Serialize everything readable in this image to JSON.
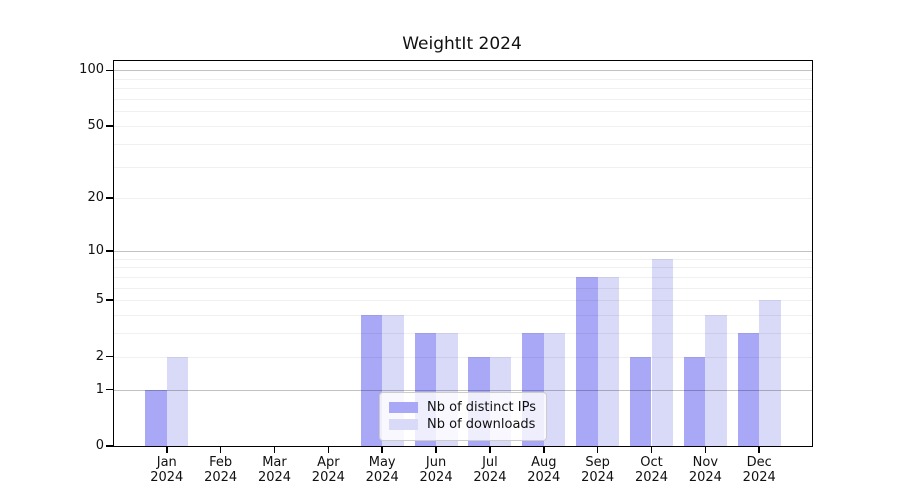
{
  "title": "WeightIt 2024",
  "chart_data": {
    "type": "bar",
    "title": "WeightIt 2024",
    "year": "2024",
    "categories": [
      "Jan",
      "Feb",
      "Mar",
      "Apr",
      "May",
      "Jun",
      "Jul",
      "Aug",
      "Sep",
      "Oct",
      "Nov",
      "Dec"
    ],
    "series": [
      {
        "name": "Nb of distinct IPs",
        "color_hex": "#a8a8f6",
        "values": [
          1,
          0,
          0,
          0,
          4,
          3,
          2,
          3,
          7,
          2,
          2,
          3
        ]
      },
      {
        "name": "Nb of downloads",
        "color_hex": "#d9d9f8",
        "values": [
          2,
          0,
          0,
          0,
          4,
          3,
          2,
          3,
          7,
          9,
          4,
          5
        ]
      }
    ],
    "y_axis": {
      "scale": "log1p",
      "ticks": [
        0,
        1,
        2,
        5,
        10,
        20,
        50,
        100
      ],
      "top_value": 112.4,
      "major_gridlines": [
        1,
        10,
        100
      ],
      "minor_gridlines": [
        2,
        3,
        4,
        5,
        6,
        7,
        8,
        9,
        20,
        30,
        40,
        50,
        60,
        70,
        80,
        90
      ]
    },
    "x_axis": {
      "label_line2": "2024"
    },
    "legend": {
      "position": "lower center"
    },
    "grid": true,
    "bar_width_units": 0.4,
    "x_pad_units": 0.98
  }
}
